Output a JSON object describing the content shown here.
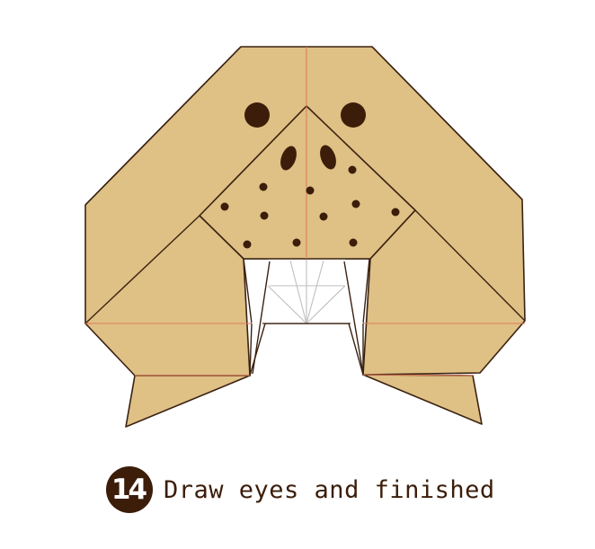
{
  "step": {
    "number": "14",
    "caption": "Draw eyes and finished"
  },
  "colors": {
    "paper": "#dfc085",
    "outline": "#3a2212",
    "crease": "#e07a5a",
    "inner_crease": "#bfbfbf",
    "spots": "#3b1d0a",
    "badge": "#3b1d0a"
  }
}
